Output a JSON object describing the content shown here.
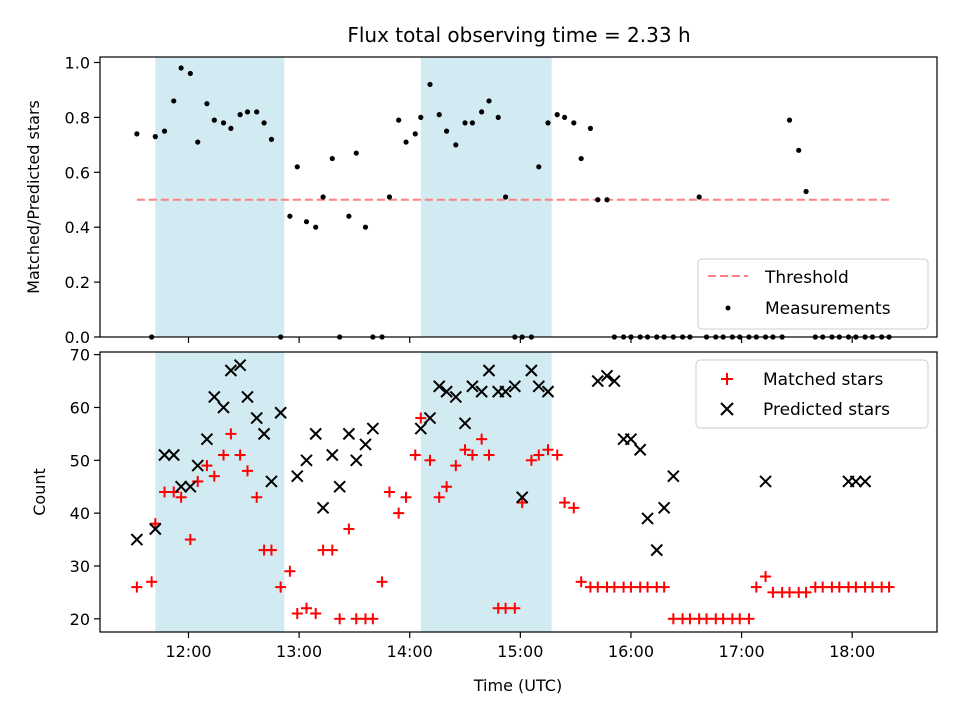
{
  "chart_data": [
    {
      "type": "scatter",
      "title": "Flux total observing time = 2.33 h",
      "ylabel": "Matched/Predicted stars",
      "ylim": [
        0,
        1.02
      ],
      "yticks": [
        "0.0",
        "0.2",
        "0.4",
        "0.6",
        "0.8",
        "1.0"
      ],
      "ytick_values": [
        0,
        0.2,
        0.4,
        0.6,
        0.8,
        1.0
      ],
      "shaded_spans": [
        [
          "11:42",
          "12:52"
        ],
        [
          "14:06",
          "15:17"
        ]
      ],
      "shade_color": "#add8e6",
      "legend_position": "lower-right",
      "threshold": {
        "name": "Threshold",
        "value": 0.5,
        "x_range": [
          "11:32",
          "18:20"
        ],
        "color": "#ff8080"
      },
      "series": [
        {
          "name": "Measurements",
          "color": "#000000",
          "x": [
            "11:32",
            "11:40",
            "11:42",
            "11:47",
            "11:52",
            "11:56",
            "12:01",
            "12:05",
            "12:10",
            "12:14",
            "12:19",
            "12:23",
            "12:28",
            "12:32",
            "12:37",
            "12:41",
            "12:45",
            "12:50",
            "12:55",
            "12:59",
            "13:04",
            "13:09",
            "13:13",
            "13:18",
            "13:22",
            "13:27",
            "13:31",
            "13:36",
            "13:40",
            "13:45",
            "13:49",
            "13:54",
            "13:58",
            "14:03",
            "14:06",
            "14:11",
            "14:16",
            "14:20",
            "14:25",
            "14:30",
            "14:34",
            "14:39",
            "14:43",
            "14:48",
            "14:52",
            "14:57",
            "15:01",
            "15:06",
            "15:10",
            "15:15",
            "15:20",
            "15:24",
            "15:29",
            "15:33",
            "15:38",
            "15:42",
            "15:47",
            "15:51",
            "15:56",
            "16:00",
            "16:05",
            "16:09",
            "16:14",
            "16:18",
            "16:23",
            "16:28",
            "16:32",
            "16:37",
            "16:41",
            "16:46",
            "16:50",
            "16:55",
            "16:59",
            "17:04",
            "17:08",
            "17:13",
            "17:17",
            "17:22",
            "17:26",
            "17:31",
            "17:35",
            "17:40",
            "17:44",
            "17:49",
            "17:53",
            "17:58",
            "18:02",
            "18:07",
            "18:11",
            "18:16",
            "18:20"
          ],
          "y": [
            0.74,
            0.0,
            0.73,
            0.75,
            0.86,
            0.98,
            0.96,
            0.71,
            0.85,
            0.79,
            0.78,
            0.76,
            0.81,
            0.82,
            0.82,
            0.78,
            0.72,
            0.0,
            0.44,
            0.62,
            0.42,
            0.4,
            0.51,
            0.65,
            0.0,
            0.44,
            0.67,
            0.4,
            0.0,
            0.0,
            0.51,
            0.79,
            0.71,
            0.74,
            0.8,
            0.92,
            0.81,
            0.75,
            0.7,
            0.78,
            0.78,
            0.82,
            0.86,
            0.8,
            0.51,
            0.0,
            0.0,
            0.0,
            0.62,
            0.78,
            0.81,
            0.8,
            0.78,
            0.65,
            0.76,
            0.5,
            0.5,
            0.0,
            0.0,
            0.0,
            0.0,
            0.0,
            0.0,
            0.0,
            0.0,
            0.0,
            0.0,
            0.51,
            0.0,
            0.0,
            0.0,
            0.0,
            0.0,
            0.0,
            0.0,
            0.0,
            0.0,
            0.0,
            0.79,
            0.68,
            0.53,
            0.0,
            0.0,
            0.0,
            0.0,
            0.0,
            0.0,
            0.0,
            0.0,
            0.0,
            0.0
          ]
        }
      ]
    },
    {
      "type": "scatter",
      "xlabel": "Time (UTC)",
      "ylabel": "Count",
      "ylim": [
        17.5,
        70.5
      ],
      "yticks": [
        "20",
        "30",
        "40",
        "50",
        "60",
        "70"
      ],
      "ytick_values": [
        20,
        30,
        40,
        50,
        60,
        70
      ],
      "xlim": [
        "11:12",
        "18:46"
      ],
      "xticks": [
        "12:00",
        "13:00",
        "14:00",
        "15:00",
        "16:00",
        "17:00",
        "18:00"
      ],
      "xtick_values": [
        "12:00",
        "13:00",
        "14:00",
        "15:00",
        "16:00",
        "17:00",
        "18:00"
      ],
      "shaded_spans": [
        [
          "11:42",
          "12:52"
        ],
        [
          "14:06",
          "15:17"
        ]
      ],
      "shade_color": "#add8e6",
      "legend_position": "upper-right",
      "series": [
        {
          "name": "Matched stars",
          "marker": "plus",
          "color": "#ff0000",
          "x": [
            "11:32",
            "11:40",
            "11:42",
            "11:47",
            "11:52",
            "11:56",
            "12:01",
            "12:05",
            "12:10",
            "12:14",
            "12:19",
            "12:23",
            "12:28",
            "12:32",
            "12:37",
            "12:41",
            "12:45",
            "12:50",
            "12:55",
            "12:59",
            "13:04",
            "13:09",
            "13:13",
            "13:18",
            "13:22",
            "13:27",
            "13:31",
            "13:36",
            "13:40",
            "13:45",
            "13:49",
            "13:54",
            "13:58",
            "14:03",
            "14:06",
            "14:11",
            "14:16",
            "14:20",
            "14:25",
            "14:30",
            "14:34",
            "14:39",
            "14:43",
            "14:48",
            "14:52",
            "14:57",
            "15:01",
            "15:06",
            "15:10",
            "15:15",
            "15:20",
            "15:24",
            "15:29",
            "15:33",
            "15:38",
            "15:42",
            "15:47",
            "15:51",
            "15:56",
            "16:00",
            "16:05",
            "16:09",
            "16:14",
            "16:18",
            "16:23",
            "16:28",
            "16:32",
            "16:37",
            "16:41",
            "16:46",
            "16:50",
            "16:55",
            "16:59",
            "17:04",
            "17:08",
            "17:13",
            "17:17",
            "17:22",
            "17:26",
            "17:31",
            "17:35",
            "17:40",
            "17:44",
            "17:49",
            "17:53",
            "17:58",
            "18:02",
            "18:07",
            "18:11",
            "18:16",
            "18:20"
          ],
          "y": [
            26,
            27,
            38,
            44,
            44,
            43,
            35,
            46,
            49,
            47,
            51,
            55,
            51,
            48,
            43,
            33,
            33,
            26,
            29,
            21,
            22,
            21,
            33,
            33,
            20,
            37,
            20,
            20,
            20,
            27,
            44,
            40,
            43,
            51,
            58,
            50,
            43,
            45,
            49,
            52,
            51,
            54,
            51,
            22,
            22,
            22,
            42,
            50,
            51,
            52,
            51,
            42,
            41,
            27,
            26,
            26,
            26,
            26,
            26,
            26,
            26,
            26,
            26,
            26,
            20,
            20,
            20,
            20,
            20,
            20,
            20,
            20,
            20,
            20,
            26,
            28,
            25,
            25,
            25,
            25,
            25,
            26,
            26,
            26,
            26,
            26,
            26,
            26,
            26,
            26,
            26
          ]
        },
        {
          "name": "Predicted stars",
          "marker": "x",
          "color": "#000000",
          "x": [
            "11:32",
            "11:42",
            "11:47",
            "11:52",
            "11:56",
            "12:01",
            "12:05",
            "12:10",
            "12:14",
            "12:19",
            "12:23",
            "12:28",
            "12:32",
            "12:37",
            "12:41",
            "12:45",
            "12:50",
            "12:59",
            "13:04",
            "13:09",
            "13:13",
            "13:18",
            "13:22",
            "13:27",
            "13:31",
            "13:36",
            "13:40",
            "14:06",
            "14:11",
            "14:16",
            "14:20",
            "14:25",
            "14:30",
            "14:34",
            "14:39",
            "14:43",
            "14:48",
            "14:52",
            "14:57",
            "15:01",
            "15:06",
            "15:10",
            "15:15",
            "15:42",
            "15:47",
            "15:51",
            "15:56",
            "16:00",
            "16:05",
            "16:09",
            "16:14",
            "16:18",
            "16:23",
            "17:13",
            "17:58",
            "18:02",
            "18:07"
          ],
          "y": [
            35,
            37,
            51,
            51,
            45,
            45,
            49,
            54,
            62,
            60,
            67,
            68,
            62,
            58,
            55,
            46,
            59,
            47,
            50,
            55,
            41,
            51,
            45,
            55,
            50,
            53,
            56,
            56,
            58,
            64,
            63,
            62,
            57,
            64,
            63,
            67,
            63,
            63,
            64,
            43,
            67,
            64,
            63,
            65,
            66,
            65,
            54,
            54,
            52,
            39,
            33,
            41,
            47,
            46,
            46,
            46,
            46
          ]
        }
      ]
    }
  ]
}
